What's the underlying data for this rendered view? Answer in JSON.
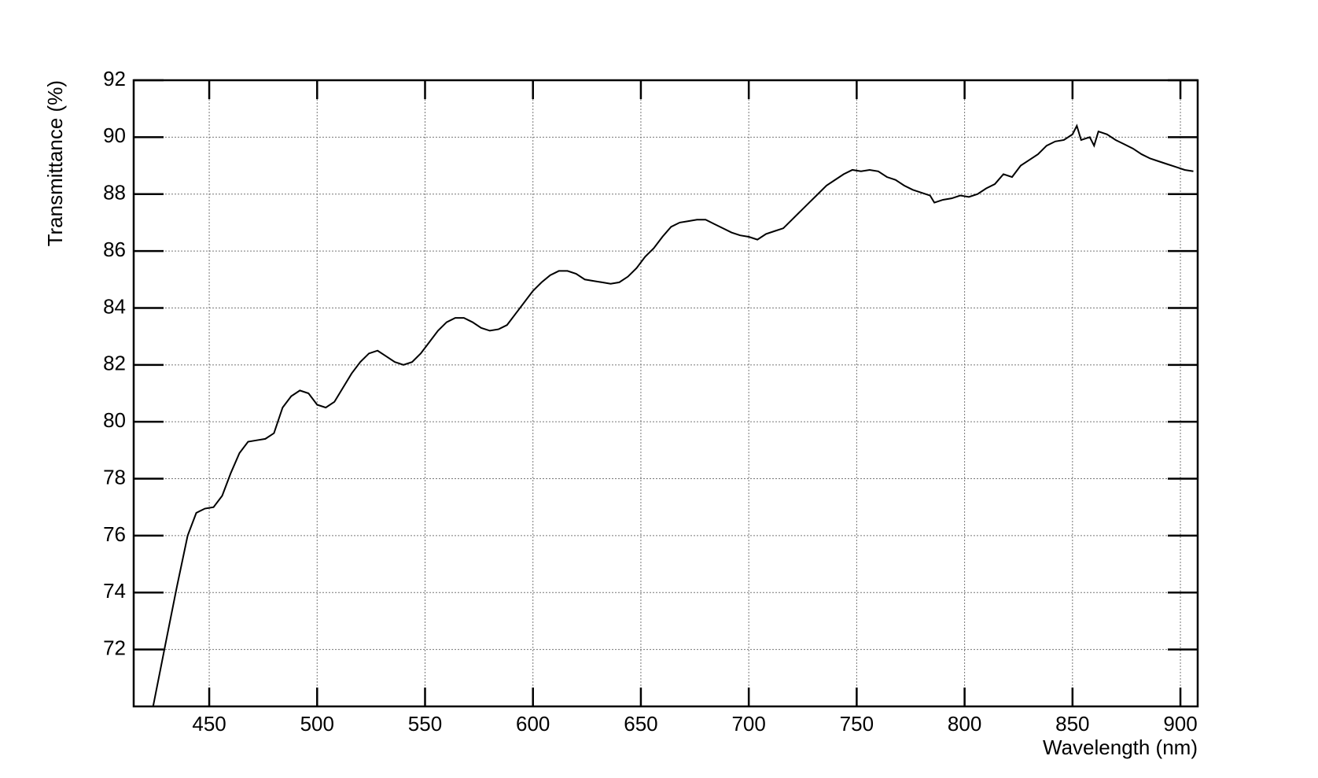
{
  "chart_data": {
    "type": "line",
    "x_label": "Wavelength (nm)",
    "y_label": "Transmittance (%)",
    "x": [
      424,
      430,
      435,
      440,
      444,
      448,
      452,
      456,
      460,
      464,
      468,
      472,
      476,
      480,
      484,
      488,
      492,
      496,
      500,
      504,
      508,
      512,
      516,
      520,
      524,
      528,
      532,
      536,
      540,
      544,
      548,
      552,
      556,
      560,
      564,
      568,
      572,
      576,
      580,
      584,
      588,
      592,
      596,
      600,
      604,
      608,
      612,
      616,
      620,
      624,
      628,
      632,
      636,
      640,
      644,
      648,
      652,
      656,
      660,
      664,
      668,
      672,
      676,
      680,
      684,
      688,
      692,
      696,
      700,
      704,
      708,
      712,
      716,
      720,
      724,
      728,
      732,
      736,
      740,
      744,
      748,
      752,
      756,
      760,
      764,
      768,
      772,
      776,
      780,
      784,
      786,
      790,
      794,
      798,
      802,
      806,
      810,
      814,
      818,
      822,
      826,
      830,
      834,
      838,
      842,
      846,
      850,
      852,
      854,
      858,
      860,
      862,
      866,
      870,
      874,
      878,
      882,
      886,
      890,
      894,
      898,
      902,
      906
    ],
    "series": [
      {
        "name": "Transmittance",
        "color": "#000000",
        "values": [
          70.0,
          72.3,
          74.2,
          76.0,
          76.8,
          76.95,
          77.0,
          77.4,
          78.2,
          78.9,
          79.3,
          79.35,
          79.4,
          79.6,
          80.5,
          80.9,
          81.1,
          81.0,
          80.6,
          80.5,
          80.7,
          81.2,
          81.7,
          82.1,
          82.4,
          82.5,
          82.3,
          82.1,
          82.0,
          82.1,
          82.4,
          82.8,
          83.2,
          83.5,
          83.65,
          83.65,
          83.5,
          83.3,
          83.2,
          83.25,
          83.4,
          83.8,
          84.2,
          84.6,
          84.9,
          85.15,
          85.3,
          85.3,
          85.2,
          85.0,
          84.95,
          84.9,
          84.85,
          84.9,
          85.1,
          85.4,
          85.8,
          86.1,
          86.5,
          86.85,
          87.0,
          87.05,
          87.1,
          87.1,
          86.95,
          86.8,
          86.65,
          86.55,
          86.5,
          86.4,
          86.6,
          86.7,
          86.8,
          87.1,
          87.4,
          87.7,
          88.0,
          88.3,
          88.5,
          88.7,
          88.85,
          88.8,
          88.85,
          88.8,
          88.6,
          88.5,
          88.3,
          88.15,
          88.05,
          87.95,
          87.7,
          87.8,
          87.85,
          87.95,
          87.9,
          88.0,
          88.2,
          88.35,
          88.7,
          88.6,
          89.0,
          89.2,
          89.4,
          89.7,
          89.85,
          89.9,
          90.1,
          90.4,
          89.9,
          90.0,
          89.7,
          90.2,
          90.1,
          89.9,
          89.75,
          89.6,
          89.4,
          89.25,
          89.15,
          89.05,
          88.95,
          88.85,
          88.8
        ]
      }
    ],
    "xlim": [
      415,
      908
    ],
    "ylim": [
      70,
      92
    ],
    "xticks": [
      450,
      500,
      550,
      600,
      650,
      700,
      750,
      800,
      850,
      900
    ],
    "yticks": [
      72,
      74,
      76,
      78,
      80,
      82,
      84,
      86,
      88,
      90,
      92
    ],
    "grid": true
  }
}
